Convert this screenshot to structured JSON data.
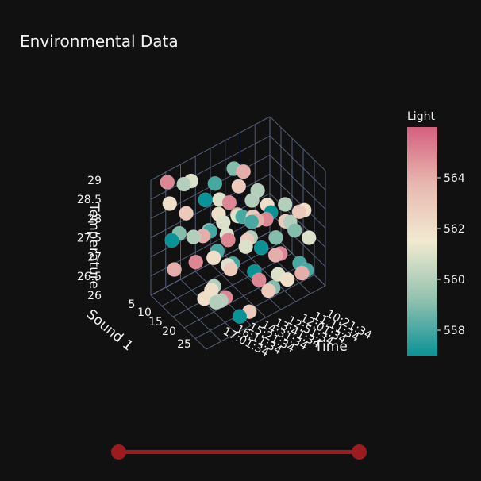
{
  "title": "Environmental Data",
  "chart_data": {
    "type": "scatter3d",
    "title": "Environmental Data",
    "axes": {
      "z": {
        "label": "Temperature",
        "ticks": [
          "26",
          "26.5",
          "27",
          "27.5",
          "28",
          "28.5",
          "29"
        ],
        "range": [
          26,
          29
        ]
      },
      "x": {
        "label": "Sound 1",
        "ticks": [
          "5",
          "10",
          "15",
          "20",
          "25"
        ],
        "range": [
          3,
          27
        ]
      },
      "y": {
        "label": "Time",
        "ticks": [
          "10:21:34",
          "11:11:34",
          "12:01:34",
          "12:51:34",
          "13:41:34",
          "14:31:34",
          "15:21:34",
          "16:11:34",
          "17:01:34"
        ]
      }
    },
    "colorbar": {
      "title": "Light",
      "ticks": [
        "558",
        "560",
        "562",
        "564"
      ],
      "range": [
        557,
        566
      ],
      "colorscale": [
        "#0a9396",
        "#94c2b0",
        "#f1ead0",
        "#e8b8b0",
        "#d5607e"
      ]
    },
    "grid": true,
    "points": [
      {
        "x": 5,
        "y": 0.1,
        "z": 28.9,
        "c": 565
      },
      {
        "x": 5,
        "y": 0.3,
        "z": 28.6,
        "c": 561
      },
      {
        "x": 5,
        "y": 0.5,
        "z": 28.2,
        "c": 558
      },
      {
        "x": 5,
        "y": 0.7,
        "z": 27.8,
        "c": 563
      },
      {
        "x": 5,
        "y": 0.2,
        "z": 27.4,
        "c": 559
      },
      {
        "x": 5,
        "y": 0.4,
        "z": 27.0,
        "c": 564
      },
      {
        "x": 5,
        "y": 0.6,
        "z": 26.7,
        "c": 561
      },
      {
        "x": 5,
        "y": 0.8,
        "z": 26.3,
        "c": 560
      },
      {
        "x": 6,
        "y": 0.1,
        "z": 28.4,
        "c": 562
      },
      {
        "x": 6,
        "y": 0.4,
        "z": 28.0,
        "c": 557
      },
      {
        "x": 6,
        "y": 0.6,
        "z": 27.6,
        "c": 565
      },
      {
        "x": 6,
        "y": 0.3,
        "z": 27.2,
        "c": 560
      },
      {
        "x": 6,
        "y": 0.8,
        "z": 26.9,
        "c": 563
      },
      {
        "x": 6,
        "y": 0.5,
        "z": 26.5,
        "c": 558
      },
      {
        "x": 7,
        "y": 0.2,
        "z": 28.8,
        "c": 560
      },
      {
        "x": 7,
        "y": 0.7,
        "z": 28.3,
        "c": 564
      },
      {
        "x": 7,
        "y": 0.5,
        "z": 27.9,
        "c": 561
      },
      {
        "x": 7,
        "y": 0.1,
        "z": 27.5,
        "c": 557
      },
      {
        "x": 7,
        "y": 0.9,
        "z": 27.1,
        "c": 562
      },
      {
        "x": 7,
        "y": 0.3,
        "z": 26.6,
        "c": 565
      },
      {
        "x": 8,
        "y": 0.6,
        "z": 28.6,
        "c": 559
      },
      {
        "x": 8,
        "y": 0.2,
        "z": 28.1,
        "c": 563
      },
      {
        "x": 8,
        "y": 0.8,
        "z": 27.7,
        "c": 560
      },
      {
        "x": 8,
        "y": 0.4,
        "z": 27.3,
        "c": 558
      },
      {
        "x": 8,
        "y": 0.1,
        "z": 26.8,
        "c": 564
      },
      {
        "x": 8,
        "y": 0.7,
        "z": 26.4,
        "c": 561
      },
      {
        "x": 22,
        "y": 0.2,
        "z": 28.9,
        "c": 562
      },
      {
        "x": 22,
        "y": 0.4,
        "z": 28.5,
        "c": 558
      },
      {
        "x": 22,
        "y": 0.6,
        "z": 28.1,
        "c": 565
      },
      {
        "x": 22,
        "y": 0.8,
        "z": 27.7,
        "c": 560
      },
      {
        "x": 22,
        "y": 0.3,
        "z": 27.3,
        "c": 563
      },
      {
        "x": 22,
        "y": 0.5,
        "z": 26.9,
        "c": 557
      },
      {
        "x": 22,
        "y": 0.7,
        "z": 26.5,
        "c": 561
      },
      {
        "x": 22,
        "y": 0.9,
        "z": 26.2,
        "c": 564
      },
      {
        "x": 23,
        "y": 0.1,
        "z": 28.7,
        "c": 559
      },
      {
        "x": 23,
        "y": 0.5,
        "z": 28.3,
        "c": 564
      },
      {
        "x": 23,
        "y": 0.9,
        "z": 27.9,
        "c": 562
      },
      {
        "x": 23,
        "y": 0.3,
        "z": 27.5,
        "c": 558
      },
      {
        "x": 23,
        "y": 0.7,
        "z": 27.1,
        "c": 565
      },
      {
        "x": 23,
        "y": 0.2,
        "z": 26.7,
        "c": 560
      },
      {
        "x": 23,
        "y": 0.6,
        "z": 26.3,
        "c": 563
      },
      {
        "x": 24,
        "y": 0.2,
        "z": 28.8,
        "c": 561
      },
      {
        "x": 24,
        "y": 0.6,
        "z": 28.4,
        "c": 557
      },
      {
        "x": 24,
        "y": 0.4,
        "z": 28.0,
        "c": 563
      },
      {
        "x": 24,
        "y": 0.8,
        "z": 27.6,
        "c": 559
      },
      {
        "x": 24,
        "y": 0.1,
        "z": 27.2,
        "c": 562
      },
      {
        "x": 24,
        "y": 0.5,
        "z": 26.8,
        "c": 565
      },
      {
        "x": 24,
        "y": 0.9,
        "z": 26.4,
        "c": 558
      },
      {
        "x": 25,
        "y": 0.3,
        "z": 28.9,
        "c": 564
      },
      {
        "x": 25,
        "y": 0.7,
        "z": 28.5,
        "c": 560
      },
      {
        "x": 25,
        "y": 0.1,
        "z": 28.1,
        "c": 562
      },
      {
        "x": 25,
        "y": 0.5,
        "z": 27.7,
        "c": 557
      },
      {
        "x": 25,
        "y": 0.9,
        "z": 27.3,
        "c": 561
      },
      {
        "x": 25,
        "y": 0.2,
        "z": 26.9,
        "c": 565
      },
      {
        "x": 25,
        "y": 0.6,
        "z": 26.5,
        "c": 559
      },
      {
        "x": 25,
        "y": 0.4,
        "z": 26.2,
        "c": 563
      },
      {
        "x": 26,
        "y": 0.4,
        "z": 28.6,
        "c": 558
      },
      {
        "x": 26,
        "y": 0.8,
        "z": 28.2,
        "c": 563
      },
      {
        "x": 26,
        "y": 0.2,
        "z": 27.8,
        "c": 561
      },
      {
        "x": 26,
        "y": 0.6,
        "z": 27.4,
        "c": 564
      },
      {
        "x": 26,
        "y": 0.1,
        "z": 27.0,
        "c": 560
      },
      {
        "x": 26,
        "y": 0.7,
        "z": 26.6,
        "c": 562
      },
      {
        "x": 26,
        "y": 0.3,
        "z": 26.3,
        "c": 557
      },
      {
        "x": 21,
        "y": 0.5,
        "z": 28.7,
        "c": 560
      },
      {
        "x": 21,
        "y": 0.3,
        "z": 28.0,
        "c": 565
      },
      {
        "x": 21,
        "y": 0.7,
        "z": 27.4,
        "c": 559
      },
      {
        "x": 21,
        "y": 0.1,
        "z": 26.8,
        "c": 562
      },
      {
        "x": 21,
        "y": 0.9,
        "z": 26.4,
        "c": 558
      },
      {
        "x": 20,
        "y": 0.4,
        "z": 28.4,
        "c": 561
      },
      {
        "x": 20,
        "y": 0.8,
        "z": 27.6,
        "c": 563
      },
      {
        "x": 20,
        "y": 0.2,
        "z": 26.9,
        "c": 560
      }
    ]
  },
  "slider": {
    "label": "range-slider"
  }
}
